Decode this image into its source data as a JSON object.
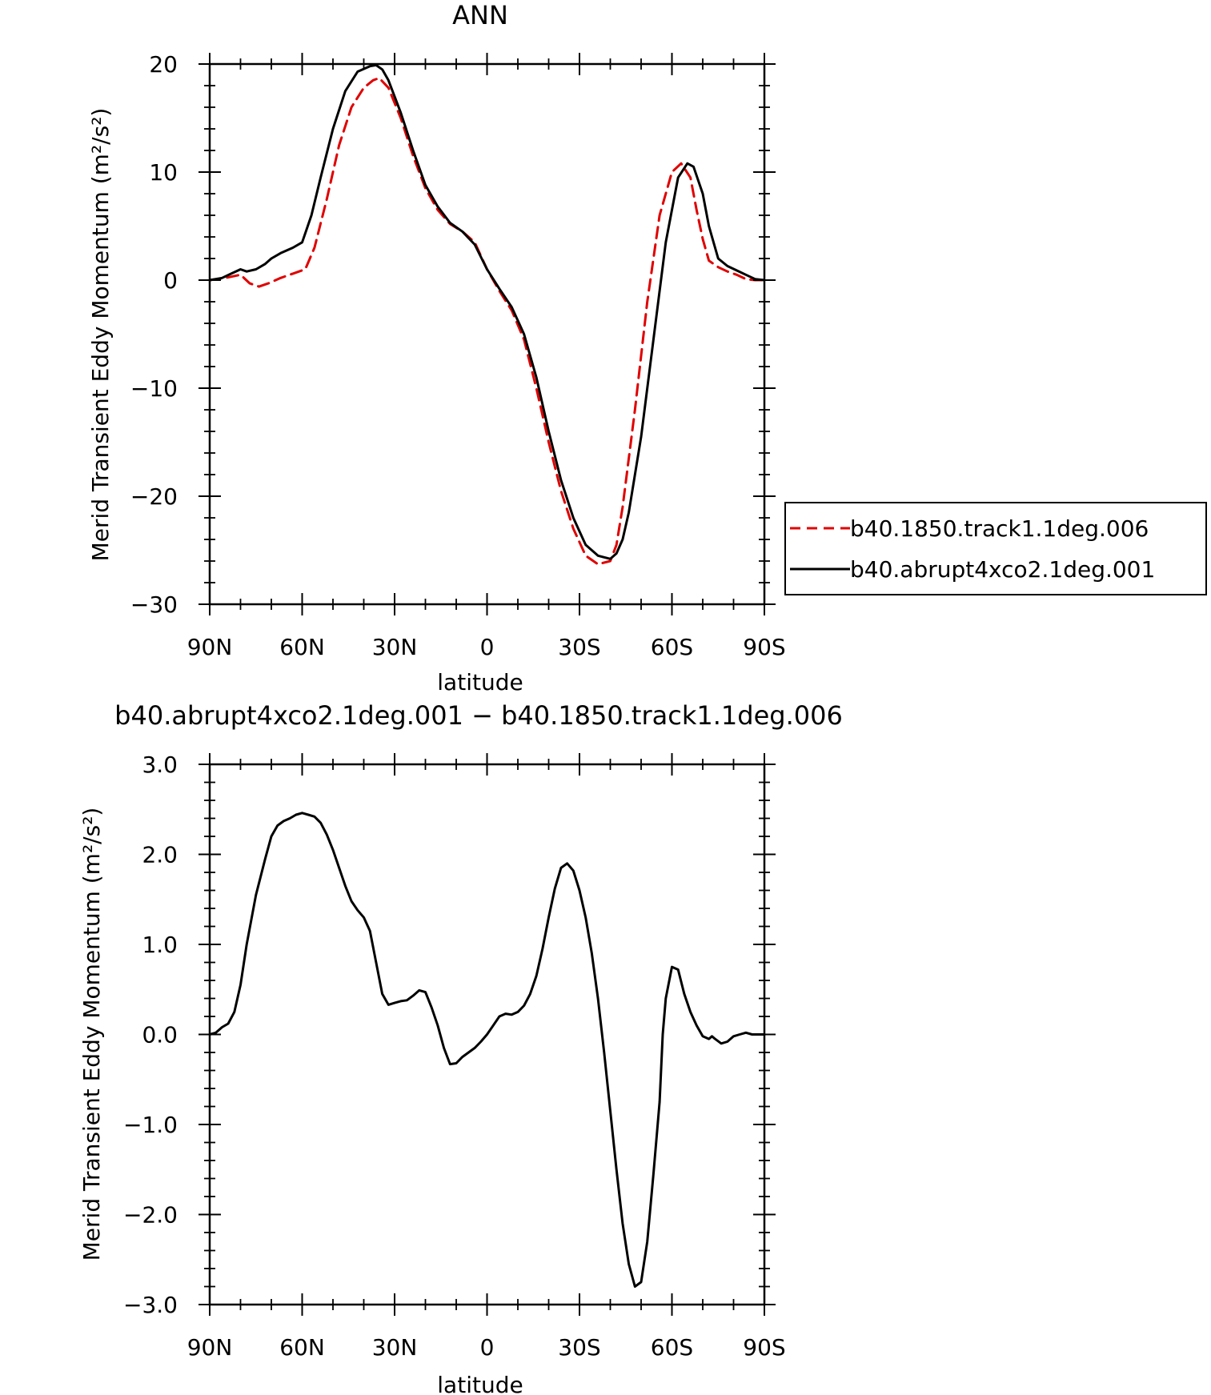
{
  "chart_data": [
    {
      "type": "line",
      "title": "ANN",
      "xlabel": "latitude",
      "ylabel": "Merid Transient Eddy Momentum (m²/s²)",
      "xlim": [
        90,
        -90
      ],
      "ylim": [
        -30,
        20
      ],
      "x_ticks": [
        90,
        60,
        30,
        0,
        -30,
        -60,
        -90
      ],
      "x_tick_labels": [
        "90N",
        "60N",
        "30N",
        "0",
        "30S",
        "60S",
        "90S"
      ],
      "y_ticks": [
        -30,
        -20,
        -10,
        0,
        10,
        20
      ],
      "y_tick_labels": [
        "−30",
        "−20",
        "−10",
        "0",
        "10",
        "20"
      ],
      "grid": false,
      "legend_position": "right",
      "series": [
        {
          "name": "b40.1850.track1.1deg.006",
          "color": "#e00000",
          "style": "dashed",
          "x": [
            90,
            85,
            80,
            77,
            74,
            71,
            67,
            63,
            59,
            56,
            52,
            48,
            44,
            40,
            37,
            35,
            32,
            28,
            24,
            20,
            16,
            12,
            8,
            4,
            0,
            -4,
            -8,
            -12,
            -16,
            -20,
            -24,
            -28,
            -32,
            -36,
            -40,
            -42,
            -44,
            -48,
            -52,
            -56,
            -60,
            -63,
            -66,
            -68,
            -70,
            -72,
            -75,
            -78,
            -81,
            -84,
            -87,
            -90
          ],
          "y": [
            0,
            0.2,
            0.5,
            -0.3,
            -0.6,
            -0.3,
            0.2,
            0.6,
            1.0,
            3.0,
            7.5,
            12.5,
            16.0,
            17.8,
            18.5,
            18.7,
            17.8,
            15.0,
            11.5,
            8.5,
            6.5,
            5.2,
            4.5,
            3.5,
            1.0,
            -1.0,
            -2.8,
            -5.5,
            -10.0,
            -15.0,
            -19.5,
            -23.0,
            -25.5,
            -26.3,
            -26.0,
            -24.5,
            -21.0,
            -12.0,
            -2.0,
            6.0,
            10.0,
            10.8,
            9.5,
            6.5,
            3.8,
            1.8,
            1.2,
            0.8,
            0.5,
            0.1,
            0,
            0
          ]
        },
        {
          "name": "b40.abrupt4xco2.1deg.001",
          "color": "#000000",
          "style": "solid",
          "x": [
            90,
            86,
            83,
            80,
            78,
            75,
            72,
            70,
            67,
            63,
            60,
            57,
            54,
            50,
            46,
            42,
            38,
            36,
            34,
            32,
            28,
            24,
            20,
            16,
            12,
            8,
            4,
            0,
            -4,
            -8,
            -12,
            -16,
            -20,
            -24,
            -28,
            -32,
            -36,
            -40,
            -42,
            -44,
            -46,
            -50,
            -54,
            -58,
            -62,
            -65,
            -67,
            -70,
            -72,
            -75,
            -78,
            -81,
            -84,
            -87,
            -90
          ],
          "y": [
            0,
            0.2,
            0.6,
            1.0,
            0.8,
            1.0,
            1.5,
            2.0,
            2.5,
            3.0,
            3.5,
            6.0,
            9.5,
            14.0,
            17.5,
            19.3,
            19.8,
            19.9,
            19.5,
            18.5,
            15.5,
            12.0,
            8.8,
            6.8,
            5.3,
            4.5,
            3.3,
            1.0,
            -0.8,
            -2.5,
            -5.0,
            -9.0,
            -14.0,
            -18.5,
            -22.0,
            -24.5,
            -25.5,
            -25.8,
            -25.3,
            -24.0,
            -21.5,
            -14.5,
            -5.5,
            3.5,
            9.5,
            10.8,
            10.5,
            8.0,
            5.0,
            2.0,
            1.3,
            0.9,
            0.5,
            0.1,
            0
          ]
        }
      ]
    },
    {
      "type": "line",
      "title": "b40.abrupt4xco2.1deg.001 − b40.1850.track1.1deg.006",
      "xlabel": "latitude",
      "ylabel": "Merid Transient Eddy Momentum (m²/s²)",
      "xlim": [
        90,
        -90
      ],
      "ylim": [
        -3.0,
        3.0
      ],
      "x_ticks": [
        90,
        60,
        30,
        0,
        -30,
        -60,
        -90
      ],
      "x_tick_labels": [
        "90N",
        "60N",
        "30N",
        "0",
        "30S",
        "60S",
        "90S"
      ],
      "y_ticks": [
        -3.0,
        -2.0,
        -1.0,
        0.0,
        1.0,
        2.0,
        3.0
      ],
      "y_tick_labels": [
        "−3.0",
        "−2.0",
        "−1.0",
        "0.0",
        "1.0",
        "2.0",
        "3.0"
      ],
      "grid": false,
      "series": [
        {
          "color": "#000000",
          "style": "solid",
          "x": [
            90,
            88,
            86,
            84,
            82,
            80,
            78,
            75,
            72,
            70,
            68,
            66,
            64,
            62,
            60,
            58,
            56,
            54,
            52,
            50,
            48,
            46,
            44,
            42,
            40,
            38,
            36,
            34,
            32,
            30,
            28,
            26,
            24,
            22,
            20,
            18,
            16,
            14,
            12,
            10,
            8,
            6,
            4,
            2,
            0,
            -2,
            -4,
            -6,
            -8,
            -10,
            -12,
            -14,
            -16,
            -18,
            -20,
            -22,
            -24,
            -26,
            -28,
            -30,
            -32,
            -34,
            -36,
            -38,
            -40,
            -42,
            -44,
            -46,
            -48,
            -50,
            -52,
            -54,
            -56,
            -57,
            -58,
            -60,
            -62,
            -64,
            -66,
            -68,
            -70,
            -72,
            -73,
            -74,
            -76,
            -78,
            -80,
            -82,
            -84,
            -86,
            -87,
            -88,
            -90
          ],
          "y": [
            0.0,
            0.02,
            0.08,
            0.12,
            0.25,
            0.55,
            1.0,
            1.55,
            1.95,
            2.2,
            2.32,
            2.37,
            2.4,
            2.44,
            2.46,
            2.44,
            2.42,
            2.35,
            2.22,
            2.05,
            1.85,
            1.65,
            1.48,
            1.38,
            1.3,
            1.15,
            0.8,
            0.45,
            0.33,
            0.35,
            0.37,
            0.38,
            0.43,
            0.49,
            0.47,
            0.3,
            0.1,
            -0.15,
            -0.33,
            -0.32,
            -0.25,
            -0.2,
            -0.15,
            -0.08,
            0.0,
            0.1,
            0.2,
            0.23,
            0.22,
            0.25,
            0.32,
            0.45,
            0.65,
            0.95,
            1.3,
            1.62,
            1.85,
            1.9,
            1.82,
            1.6,
            1.3,
            0.9,
            0.4,
            -0.2,
            -0.85,
            -1.5,
            -2.1,
            -2.55,
            -2.8,
            -2.75,
            -2.3,
            -1.55,
            -0.75,
            0.0,
            0.4,
            0.75,
            0.72,
            0.45,
            0.25,
            0.1,
            -0.02,
            -0.05,
            -0.02,
            -0.05,
            -0.1,
            -0.08,
            -0.02,
            0.0,
            0.02,
            0.0,
            0.0,
            0.0,
            0.0
          ]
        }
      ]
    }
  ]
}
